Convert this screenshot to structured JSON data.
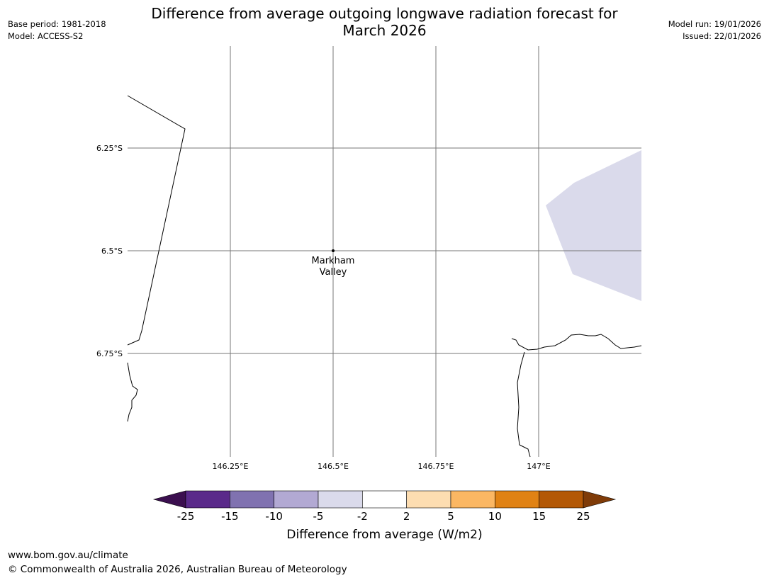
{
  "title": {
    "line1": "Difference from average outgoing longwave radiation forecast for",
    "line2": "March 2026"
  },
  "meta_left": {
    "base_period": "Base period: 1981-2018",
    "model": "Model: ACCESS-S2"
  },
  "meta_right": {
    "model_run": "Model run: 19/01/2026",
    "issued": "Issued: 22/01/2026"
  },
  "map": {
    "lat_labels": [
      "6.25°S",
      "6.5°S",
      "6.75°S"
    ],
    "lon_labels": [
      "146.25°E",
      "146.5°E",
      "146.75°E",
      "147°E"
    ],
    "place": {
      "name_line1": "Markham",
      "name_line2": "Valley",
      "lat": -6.5,
      "lon": 146.5
    },
    "anomaly_region_category": "-5 to -2"
  },
  "colorbar": {
    "ticks": [
      "-25",
      "-15",
      "-10",
      "-5",
      "-2",
      "2",
      "5",
      "10",
      "15",
      "25"
    ],
    "colors": [
      "#3b0f4f",
      "#5a2a8a",
      "#8072b0",
      "#b2a9d3",
      "#dadaeb",
      "#ffffff",
      "#fdddb1",
      "#fbb763",
      "#e08214",
      "#b35806",
      "#7f3b08"
    ],
    "title": "Difference from average (W/m2)"
  },
  "footer": {
    "url": "www.bom.gov.au/climate",
    "copyright": "© Commonwealth of Australia 2026, Australian Bureau of Meteorology"
  }
}
